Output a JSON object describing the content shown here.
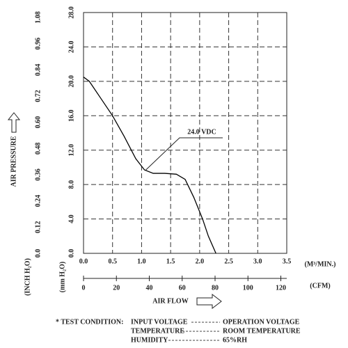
{
  "chart_data": {
    "type": "line",
    "y_label": "AIR PRESSURE",
    "y_unit": "(mm H₂O)",
    "y2_unit": "(INCH H₂O)",
    "x_label": "AIR FLOW",
    "x_unit": "(M³/MIN.)",
    "x2_unit": "(CFM)",
    "x": [
      0,
      0.1,
      0.3,
      0.5,
      0.7,
      0.9,
      1.05,
      1.2,
      1.4,
      1.6,
      1.75,
      1.9,
      2.05,
      2.15,
      2.28
    ],
    "series": [
      {
        "name": "24.0 VDC",
        "color": "#000000",
        "values": [
          20.5,
          20.0,
          18.0,
          16.0,
          13.6,
          11.0,
          9.7,
          9.3,
          9.3,
          9.2,
          8.6,
          6.5,
          4.0,
          2.0,
          0
        ]
      }
    ],
    "xlim": [
      0,
      3.5
    ],
    "xticks": [
      {
        "value": 0,
        "label": "0.0"
      },
      0.5,
      {
        "value": 1,
        "label": "1.0"
      },
      1.5,
      {
        "value": 2,
        "label": "2.0"
      },
      2.5,
      {
        "value": 3,
        "label": "3.0"
      },
      3.5
    ],
    "x2lim": [
      0,
      123.6
    ],
    "x2ticks": [
      0,
      20,
      40,
      60,
      80,
      100,
      120
    ],
    "ylim": [
      0,
      28
    ],
    "yticks": [
      {
        "value": 0,
        "label": "0.0"
      },
      {
        "value": 4,
        "label": "4.0"
      },
      {
        "value": 8,
        "label": "8.0"
      },
      {
        "value": 12,
        "label": "12.0"
      },
      {
        "value": 16,
        "label": "16.0"
      },
      {
        "value": 20,
        "label": "20.0"
      },
      {
        "value": 24,
        "label": "24.0"
      },
      {
        "value": 28,
        "label": "28.0"
      }
    ],
    "y2lim": [
      0,
      1.1024
    ],
    "y2ticks": [
      {
        "value": 0,
        "label": "0.0"
      },
      0.12,
      0.24,
      0.36,
      0.48,
      {
        "value": 0.6,
        "label": "0.60"
      },
      0.72,
      0.84,
      0.96,
      1.08
    ],
    "grid": true
  },
  "test_condition": {
    "title": "* TEST CONDITION:",
    "rows": [
      [
        "INPUT VOLTAGE",
        "OPERATION VOLTAGE"
      ],
      [
        "TEMPERATURE",
        "ROOM TEMPERATURE"
      ],
      [
        "HUMIDITY",
        "65%RH"
      ]
    ]
  }
}
